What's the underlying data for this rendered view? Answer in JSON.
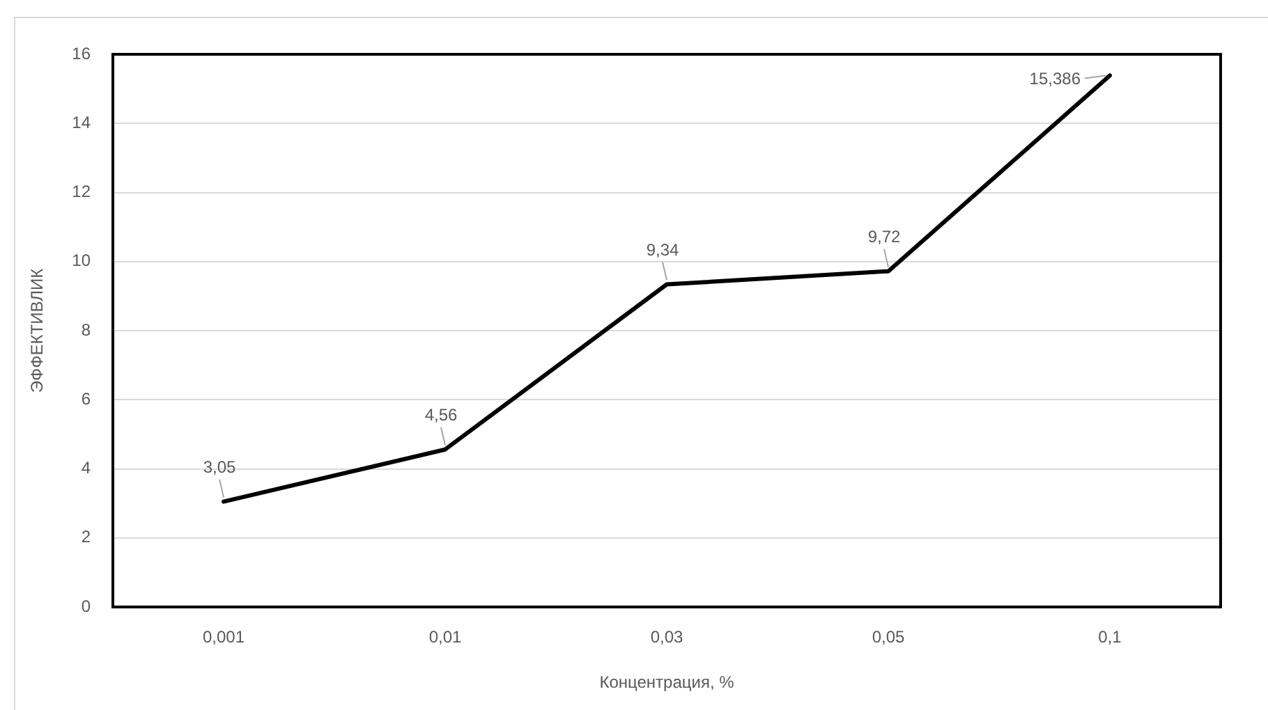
{
  "chart_data": {
    "type": "line",
    "xlabel": "Концентрация, %",
    "ylabel": "ЭФФЕКТИВЛИК",
    "categories": [
      "0,001",
      "0,01",
      "0,03",
      "0,05",
      "0,1"
    ],
    "series": [
      {
        "color": "#000000",
        "values": [
          3.05,
          4.56,
          9.34,
          9.72,
          15.386
        ],
        "value_labels": [
          "3,05",
          "4,56",
          "9,34",
          "9,72",
          "15,386"
        ]
      }
    ],
    "ylim": [
      0,
      16
    ],
    "yticks": [
      0,
      2,
      4,
      6,
      8,
      10,
      12,
      14,
      16
    ],
    "grid": "y",
    "legend": false,
    "marker": "none",
    "line_style": "solid"
  }
}
